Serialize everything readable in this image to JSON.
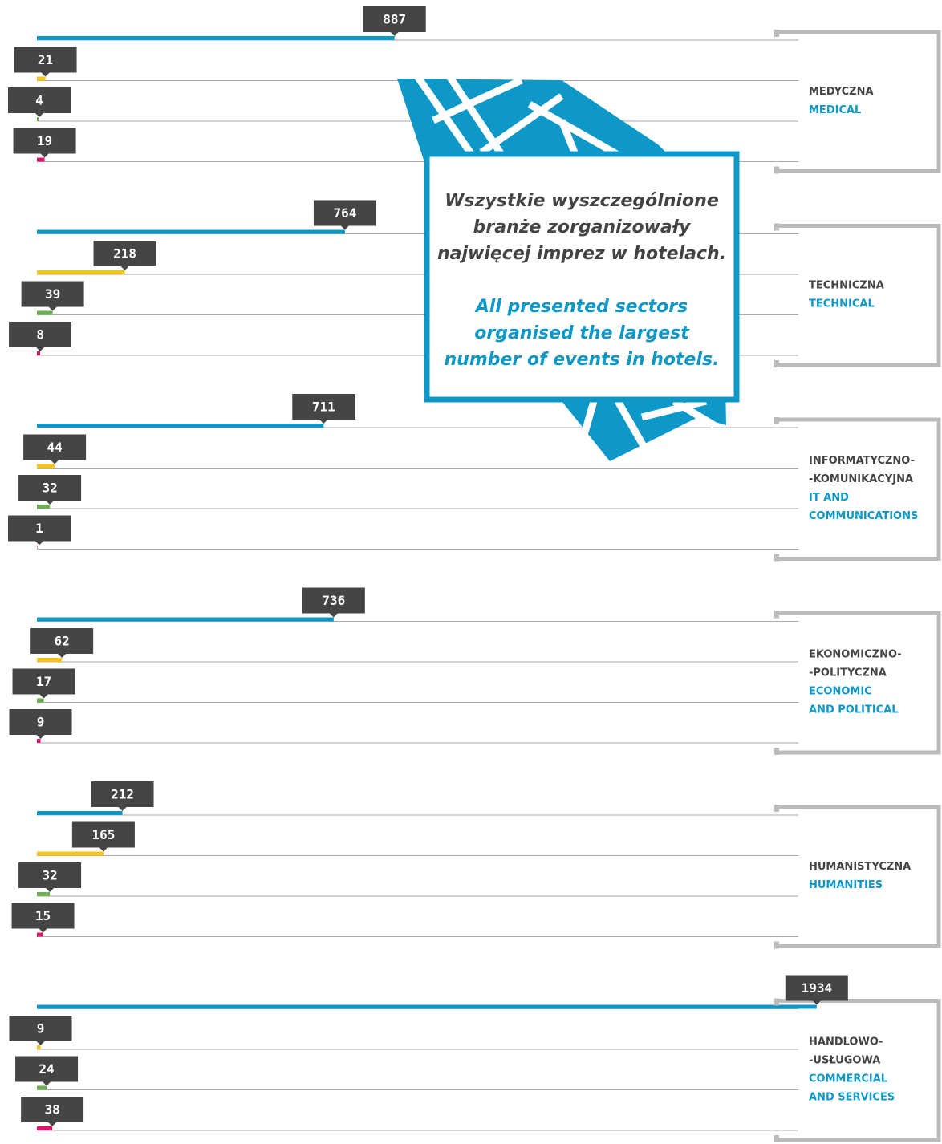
{
  "chart_data": {
    "type": "bar",
    "categories": [
      [
        "MEDYCZNA"
      ],
      [
        "TECHNICZNA"
      ],
      [
        "INFORMATYCZNO-",
        "-KOMUNIKACYJNA"
      ],
      [
        "EKONOMICZNO-",
        "-POLITYCZNA"
      ],
      [
        "HUMANISTYCZNA"
      ],
      [
        "HANDLOWO-",
        "-USŁUGOWA"
      ]
    ],
    "categories_en": [
      [
        "MEDICAL"
      ],
      [
        "TECHNICAL"
      ],
      [
        "IT AND",
        "COMMUNICATIONS"
      ],
      [
        "ECONOMIC",
        "AND POLITICAL"
      ],
      [
        "HUMANITIES"
      ],
      [
        "COMMERCIAL",
        "AND SERVICES"
      ]
    ],
    "series": [
      {
        "color": "#0e98c8",
        "values": [
          887,
          764,
          711,
          736,
          212,
          1934
        ]
      },
      {
        "color": "#f5c518",
        "values": [
          21,
          218,
          44,
          62,
          165,
          9
        ]
      },
      {
        "color": "#6ab04c",
        "values": [
          4,
          39,
          32,
          17,
          32,
          24
        ]
      },
      {
        "color": "#e0136d",
        "values": [
          19,
          8,
          1,
          9,
          15,
          38
        ]
      }
    ],
    "xlim": [
      0,
      2000
    ],
    "annotation": {
      "pl": [
        "Wszystkie wyszczególnione",
        "branże zorganizowały",
        "najwięcej imprez w hotelach."
      ],
      "en": [
        "All presented sectors",
        "organised the largest",
        "number of events in hotels."
      ]
    }
  }
}
